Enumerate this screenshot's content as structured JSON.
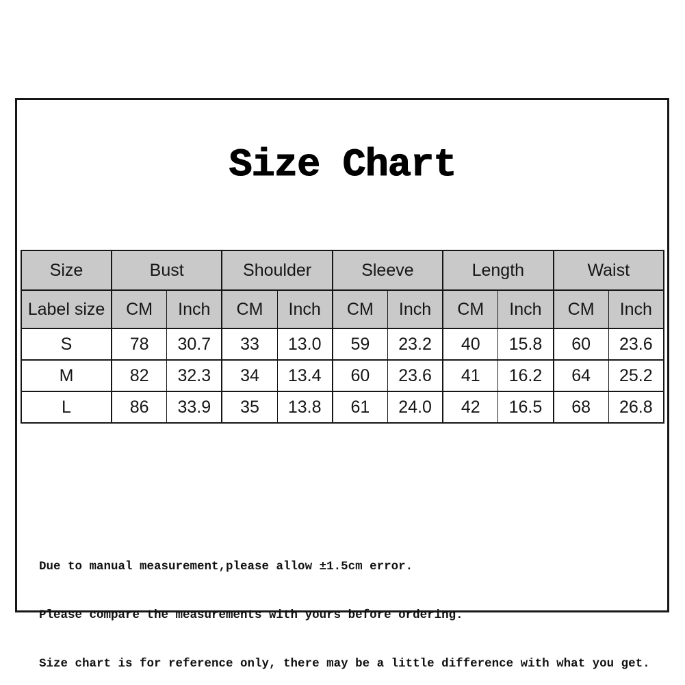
{
  "page": {
    "title": "Size Chart",
    "background_color": "#ffffff",
    "frame_border_color": "#161616",
    "header_bg_color": "#c9c9c9",
    "table_border_color": "#161616",
    "text_color": "#161616"
  },
  "table": {
    "groups": [
      {
        "label": "Size",
        "sub": [
          "Label size"
        ]
      },
      {
        "label": "Bust",
        "sub": [
          "CM",
          "Inch"
        ]
      },
      {
        "label": "Shoulder",
        "sub": [
          "CM",
          "Inch"
        ]
      },
      {
        "label": "Sleeve",
        "sub": [
          "CM",
          "Inch"
        ]
      },
      {
        "label": "Length",
        "sub": [
          "CM",
          "Inch"
        ]
      },
      {
        "label": "Waist",
        "sub": [
          "CM",
          "Inch"
        ]
      }
    ],
    "rows": [
      {
        "label": "S",
        "values": [
          "78",
          "30.7",
          "33",
          "13.0",
          "59",
          "23.2",
          "40",
          "15.8",
          "60",
          "23.6"
        ]
      },
      {
        "label": "M",
        "values": [
          "82",
          "32.3",
          "34",
          "13.4",
          "60",
          "23.6",
          "41",
          "16.2",
          "64",
          "25.2"
        ]
      },
      {
        "label": "L",
        "values": [
          "86",
          "33.9",
          "35",
          "13.8",
          "61",
          "24.0",
          "42",
          "16.5",
          "68",
          "26.8"
        ]
      }
    ]
  },
  "chart_data": {
    "type": "table",
    "title": "Size Chart",
    "columns": [
      "Label size",
      "Bust CM",
      "Bust Inch",
      "Shoulder CM",
      "Shoulder Inch",
      "Sleeve CM",
      "Sleeve Inch",
      "Length CM",
      "Length Inch",
      "Waist CM",
      "Waist Inch"
    ],
    "rows": [
      [
        "S",
        78,
        30.7,
        33,
        13.0,
        59,
        23.2,
        40,
        15.8,
        60,
        23.6
      ],
      [
        "M",
        82,
        32.3,
        34,
        13.4,
        60,
        23.6,
        41,
        16.2,
        64,
        25.2
      ],
      [
        "L",
        86,
        33.9,
        35,
        13.8,
        61,
        24.0,
        42,
        16.5,
        68,
        26.8
      ]
    ]
  },
  "notes": {
    "line1": "Due to manual measurement,please allow ±1.5cm error.",
    "line2": "Please compare the measurements with yours before ordering.",
    "line3": "Size chart is for reference only, there may be a little difference with what you get."
  }
}
